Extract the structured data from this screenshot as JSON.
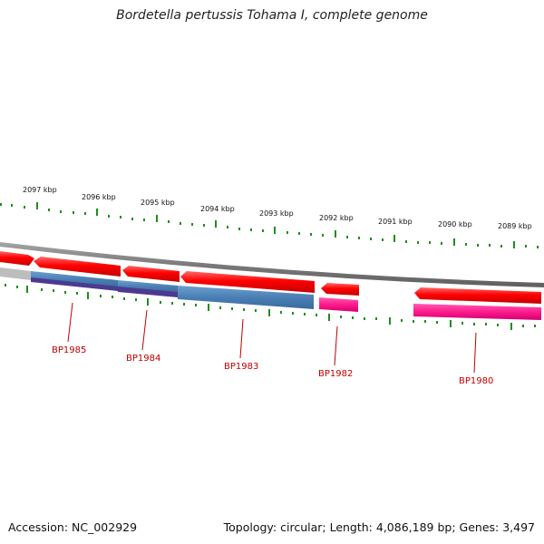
{
  "title": "Bordetella pertussis Tohama I, complete genome",
  "footer": {
    "accession": "Accession: NC_002929",
    "summary": "Topology: circular; Length: 4,086,189 bp; Genes: 3,497"
  },
  "scale_labels": [
    "2097 kbp",
    "2096 kbp",
    "2095 kbp",
    "2094 kbp",
    "2093 kbp",
    "2092 kbp",
    "2091 kbp",
    "2090 kbp",
    "2089 kbp"
  ],
  "gene_labels": [
    "BP1985",
    "BP1984",
    "BP1983",
    "BP1982",
    "BP1980"
  ],
  "colors": {
    "forward_strand": "#ff0000",
    "reverse_strand_blue": "#4a7fb5",
    "reverse_strand_purple": "#4b3a8f",
    "reverse_strand_pink": "#ff1a8c",
    "backbone": "#808080",
    "ticks": "#228b22",
    "gene_label": "#c00000"
  }
}
